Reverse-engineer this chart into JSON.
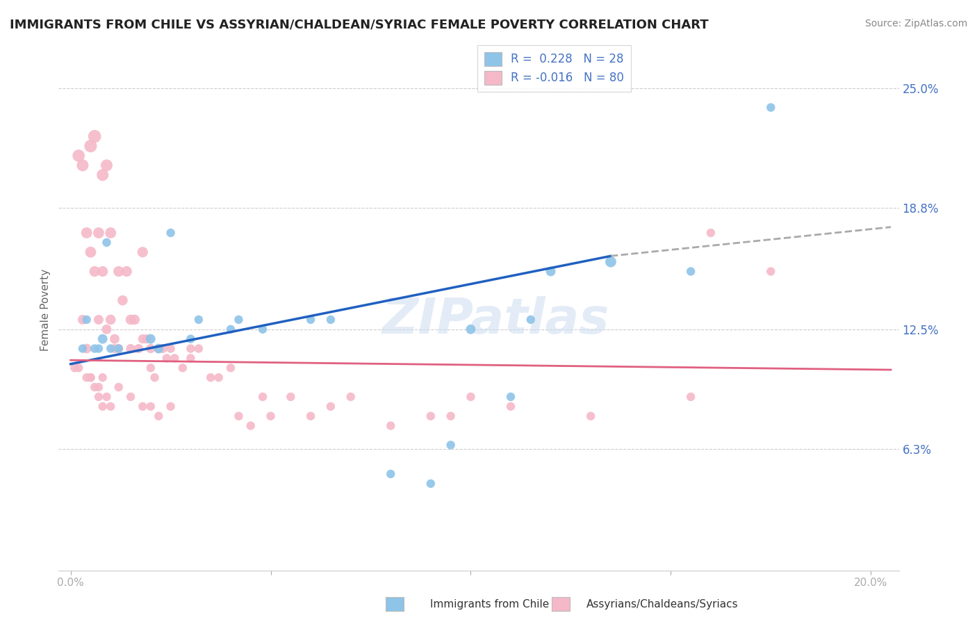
{
  "title": "IMMIGRANTS FROM CHILE VS ASSYRIAN/CHALDEAN/SYRIAC FEMALE POVERTY CORRELATION CHART",
  "source": "Source: ZipAtlas.com",
  "ylabel": "Female Poverty",
  "y_ticks": [
    0.063,
    0.125,
    0.188,
    0.25
  ],
  "y_tick_labels": [
    "6.3%",
    "12.5%",
    "18.8%",
    "25.0%"
  ],
  "legend_r1": "R =  0.228",
  "legend_n1": "N = 28",
  "legend_r2": "R = -0.016",
  "legend_n2": "N = 80",
  "color_blue": "#8ec4e8",
  "color_pink": "#f5b8c8",
  "color_blue_line": "#2060c0",
  "color_pink_line": "#e06080",
  "color_dashed": "#aaaaaa",
  "watermark": "ZIPatlas",
  "blue_scatter_x": [
    0.003,
    0.004,
    0.006,
    0.007,
    0.008,
    0.009,
    0.01,
    0.012,
    0.02,
    0.022,
    0.025,
    0.03,
    0.032,
    0.04,
    0.042,
    0.048,
    0.06,
    0.065,
    0.08,
    0.09,
    0.095,
    0.1,
    0.11,
    0.115,
    0.12,
    0.135,
    0.155,
    0.175
  ],
  "blue_scatter_y": [
    0.115,
    0.13,
    0.115,
    0.115,
    0.12,
    0.17,
    0.115,
    0.115,
    0.12,
    0.115,
    0.175,
    0.12,
    0.13,
    0.125,
    0.13,
    0.125,
    0.13,
    0.13,
    0.05,
    0.045,
    0.065,
    0.125,
    0.09,
    0.13,
    0.155,
    0.16,
    0.155,
    0.24
  ],
  "blue_scatter_size": [
    80,
    80,
    80,
    80,
    100,
    80,
    80,
    80,
    100,
    100,
    80,
    80,
    80,
    80,
    80,
    80,
    80,
    80,
    80,
    80,
    80,
    100,
    80,
    80,
    100,
    130,
    80,
    80
  ],
  "pink_scatter_x": [
    0.001,
    0.002,
    0.002,
    0.003,
    0.003,
    0.004,
    0.004,
    0.004,
    0.005,
    0.005,
    0.005,
    0.006,
    0.006,
    0.007,
    0.007,
    0.007,
    0.008,
    0.008,
    0.008,
    0.009,
    0.009,
    0.01,
    0.01,
    0.011,
    0.011,
    0.012,
    0.012,
    0.013,
    0.014,
    0.015,
    0.015,
    0.016,
    0.017,
    0.018,
    0.018,
    0.019,
    0.02,
    0.02,
    0.021,
    0.022,
    0.023,
    0.024,
    0.025,
    0.026,
    0.028,
    0.03,
    0.03,
    0.032,
    0.035,
    0.037,
    0.04,
    0.042,
    0.045,
    0.048,
    0.05,
    0.055,
    0.06,
    0.065,
    0.07,
    0.08,
    0.09,
    0.095,
    0.1,
    0.11,
    0.13,
    0.155,
    0.16,
    0.175,
    0.005,
    0.006,
    0.007,
    0.008,
    0.009,
    0.01,
    0.012,
    0.015,
    0.018,
    0.02,
    0.022,
    0.025
  ],
  "pink_scatter_y": [
    0.105,
    0.215,
    0.105,
    0.21,
    0.13,
    0.175,
    0.115,
    0.1,
    0.22,
    0.165,
    0.1,
    0.225,
    0.155,
    0.175,
    0.13,
    0.095,
    0.205,
    0.155,
    0.1,
    0.21,
    0.125,
    0.175,
    0.13,
    0.12,
    0.115,
    0.155,
    0.115,
    0.14,
    0.155,
    0.13,
    0.115,
    0.13,
    0.115,
    0.165,
    0.12,
    0.12,
    0.115,
    0.105,
    0.1,
    0.115,
    0.115,
    0.11,
    0.115,
    0.11,
    0.105,
    0.11,
    0.115,
    0.115,
    0.1,
    0.1,
    0.105,
    0.08,
    0.075,
    0.09,
    0.08,
    0.09,
    0.08,
    0.085,
    0.09,
    0.075,
    0.08,
    0.08,
    0.09,
    0.085,
    0.08,
    0.09,
    0.175,
    0.155,
    0.1,
    0.095,
    0.09,
    0.085,
    0.09,
    0.085,
    0.095,
    0.09,
    0.085,
    0.085,
    0.08,
    0.085
  ],
  "pink_scatter_size": [
    80,
    160,
    80,
    150,
    100,
    130,
    100,
    80,
    170,
    130,
    80,
    180,
    120,
    130,
    100,
    80,
    150,
    120,
    80,
    150,
    100,
    130,
    110,
    100,
    90,
    120,
    90,
    110,
    120,
    110,
    90,
    110,
    90,
    120,
    90,
    90,
    90,
    80,
    80,
    90,
    90,
    80,
    80,
    80,
    80,
    80,
    80,
    80,
    80,
    80,
    80,
    80,
    80,
    80,
    80,
    80,
    80,
    80,
    80,
    80,
    80,
    80,
    80,
    80,
    80,
    80,
    80,
    80,
    80,
    80,
    80,
    80,
    80,
    80,
    80,
    80,
    80,
    80,
    80,
    80
  ]
}
